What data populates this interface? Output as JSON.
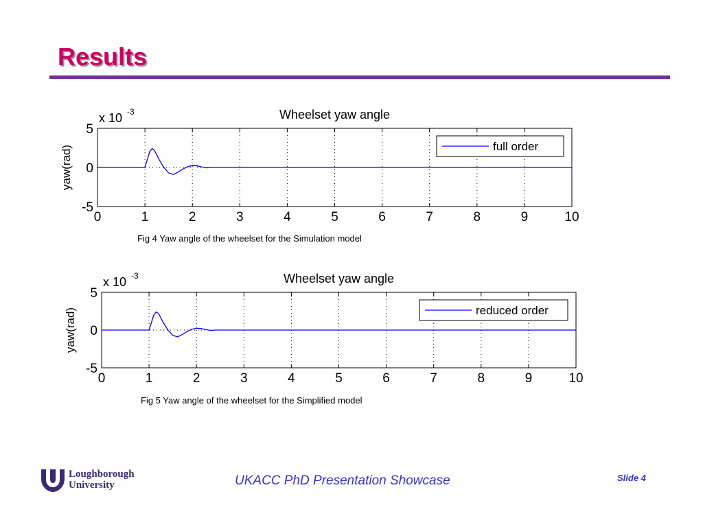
{
  "slide": {
    "title": "Results",
    "footer_text": "UKACC PhD Presentation Showcase",
    "slide_number": "Slide 4",
    "logo_line1": "Loughborough",
    "logo_line2": "University",
    "accent_color": "#cc0066",
    "rule_color": "#7030a0",
    "footer_color": "#3333cc"
  },
  "figures": [
    {
      "caption": "Fig 4 Yaw angle of the wheelset for the Simulation model"
    },
    {
      "caption": "Fig 5 Yaw angle of the wheelset for the Simplified model"
    }
  ],
  "chart_data": [
    {
      "type": "line",
      "title": "Wheelset yaw angle",
      "xlabel": "",
      "ylabel": "yaw(rad)",
      "scale_label": "x 10",
      "scale_exponent": "-3",
      "xlim": [
        0,
        10
      ],
      "ylim": [
        -5,
        5
      ],
      "xticks": [
        "0",
        "1",
        "2",
        "3",
        "4",
        "5",
        "6",
        "7",
        "8",
        "9",
        "10"
      ],
      "yticks": [
        "5",
        "0",
        "-5"
      ],
      "grid": "vertical dotted",
      "legend_position": "top-right",
      "series": [
        {
          "name": "full order",
          "color": "#0000ff",
          "x": [
            0,
            1.0,
            1.05,
            1.1,
            1.15,
            1.2,
            1.3,
            1.4,
            1.5,
            1.6,
            1.7,
            1.8,
            1.9,
            2.0,
            2.1,
            2.2,
            2.3,
            2.4,
            10
          ],
          "y": [
            0,
            0,
            1.0,
            2.0,
            2.4,
            2.2,
            1.0,
            0,
            -0.7,
            -0.9,
            -0.6,
            -0.2,
            0.1,
            0.25,
            0.2,
            0.05,
            -0.05,
            0,
            0
          ]
        }
      ]
    },
    {
      "type": "line",
      "title": "Wheelset yaw angle",
      "xlabel": "",
      "ylabel": "yaw(rad)",
      "scale_label": "x 10",
      "scale_exponent": "-3",
      "xlim": [
        0,
        10
      ],
      "ylim": [
        -5,
        5
      ],
      "xticks": [
        "0",
        "1",
        "2",
        "3",
        "4",
        "5",
        "6",
        "7",
        "8",
        "9",
        "10"
      ],
      "yticks": [
        "5",
        "0",
        "-5"
      ],
      "grid": "vertical dotted",
      "legend_position": "top-right",
      "series": [
        {
          "name": "reduced order",
          "color": "#0000ff",
          "x": [
            0,
            1.0,
            1.05,
            1.1,
            1.15,
            1.2,
            1.3,
            1.4,
            1.5,
            1.6,
            1.7,
            1.8,
            1.9,
            2.0,
            2.1,
            2.2,
            2.3,
            2.4,
            10
          ],
          "y": [
            0,
            0,
            1.0,
            2.0,
            2.4,
            2.2,
            1.0,
            0,
            -0.7,
            -0.9,
            -0.6,
            -0.2,
            0.1,
            0.25,
            0.2,
            0.05,
            -0.05,
            0,
            0
          ]
        }
      ]
    }
  ]
}
